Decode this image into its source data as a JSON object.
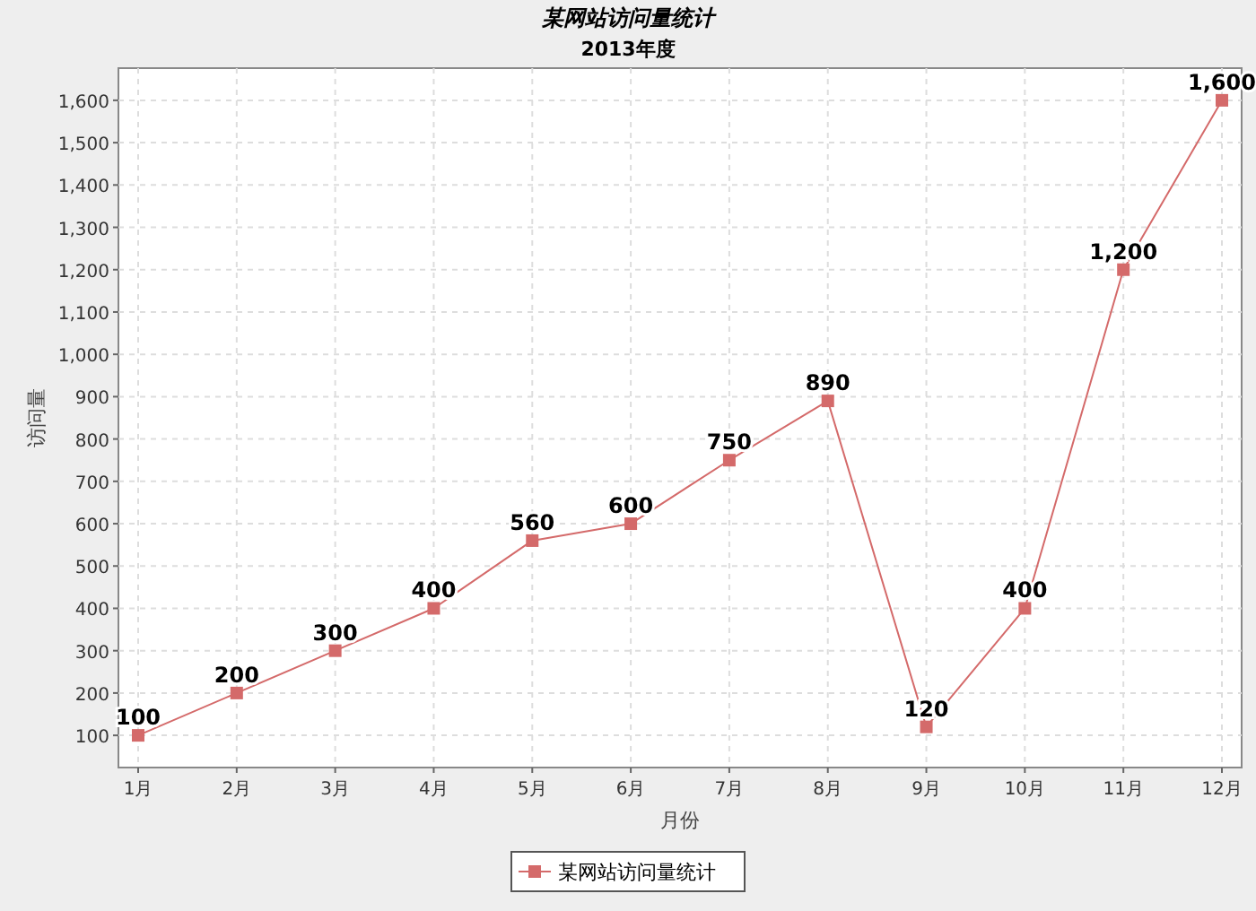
{
  "chart_data": {
    "type": "line",
    "title": "某网站访问量统计",
    "subtitle": "2013年度",
    "xlabel": "月份",
    "ylabel": "访问量",
    "categories": [
      "1月",
      "2月",
      "3月",
      "4月",
      "5月",
      "6月",
      "7月",
      "8月",
      "9月",
      "10月",
      "11月",
      "12月"
    ],
    "series": [
      {
        "name": "某网站访问量统计",
        "color": "#d46a6a",
        "values": [
          100,
          200,
          300,
          400,
          560,
          600,
          750,
          890,
          120,
          400,
          1200,
          1600
        ],
        "value_labels": [
          "100",
          "200",
          "300",
          "400",
          "560",
          "600",
          "750",
          "890",
          "120",
          "400",
          "1,200",
          "1,600"
        ]
      }
    ],
    "ylim": [
      24,
      1676
    ],
    "yticks": [
      {
        "value": 100,
        "label": "100"
      },
      {
        "value": 200,
        "label": "200"
      },
      {
        "value": 300,
        "label": "300"
      },
      {
        "value": 400,
        "label": "400"
      },
      {
        "value": 500,
        "label": "500"
      },
      {
        "value": 600,
        "label": "600"
      },
      {
        "value": 700,
        "label": "700"
      },
      {
        "value": 800,
        "label": "800"
      },
      {
        "value": 900,
        "label": "900"
      },
      {
        "value": 1000,
        "label": "1,000"
      },
      {
        "value": 1100,
        "label": "1,100"
      },
      {
        "value": 1200,
        "label": "1,200"
      },
      {
        "value": 1300,
        "label": "1,300"
      },
      {
        "value": 1400,
        "label": "1,400"
      },
      {
        "value": 1500,
        "label": "1,500"
      },
      {
        "value": 1600,
        "label": "1,600"
      }
    ],
    "grid": true,
    "legend": "bottom",
    "marker": "square",
    "line_style": "solid"
  }
}
